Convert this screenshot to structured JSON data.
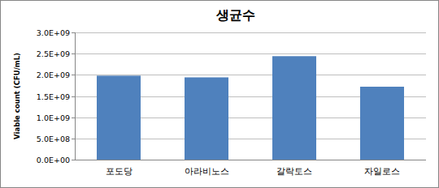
{
  "chart_data": {
    "type": "bar",
    "title": "생균수",
    "y_label": "Viable count (CFU/mL)",
    "categories": [
      "포도당",
      "아라비노스",
      "갈락토스",
      "자일로스"
    ],
    "values": [
      1980000000,
      1940000000,
      2440000000,
      1720000000
    ],
    "color": "#4f81bd",
    "ylim": [
      0,
      3000000000
    ],
    "yticks": [
      {
        "value": 0,
        "label": "0.0E+00"
      },
      {
        "value": 500000000,
        "label": "5.0E+08"
      },
      {
        "value": 1000000000,
        "label": "1.0E+09"
      },
      {
        "value": 1500000000,
        "label": "1.5E+09"
      },
      {
        "value": 2000000000,
        "label": "2.0E+09"
      },
      {
        "value": 2500000000,
        "label": "2.5E+09"
      },
      {
        "value": 3000000000,
        "label": "3.0E+09"
      }
    ],
    "grid": true
  }
}
